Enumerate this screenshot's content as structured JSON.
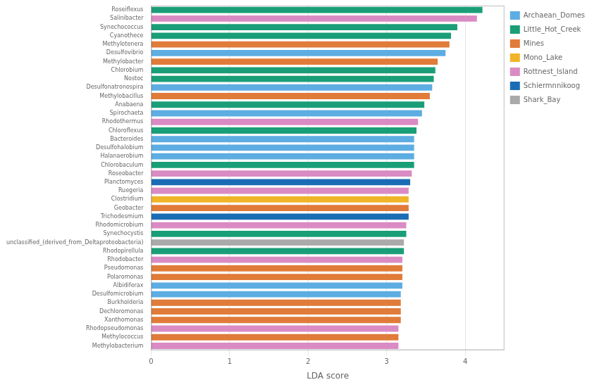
{
  "chart_data": {
    "type": "bar",
    "orientation": "horizontal",
    "xlabel": "LDA score",
    "categories": [
      "Methylobacterium",
      "Methylococcus",
      "Rhodopseudomonas",
      "Xanthomonas",
      "Dechloromonas",
      "Burkholderia",
      "Desulfomicrobium",
      "Albidiferax",
      "Polaromonas",
      "Pseudomonas",
      "Rhodobacter",
      "Rhodopirellula",
      "unclassified_(derived_from_Deltaproteobacteria)",
      "Synechocystis",
      "Rhodomicrobium",
      "Trichodesmium",
      "Geobacter",
      "Clostridium",
      "Ruegeria",
      "Planctomyces",
      "Roseobacter",
      "Chlorobaculum",
      "Halanaerobium",
      "Desulfohalobium",
      "Bacteroides",
      "Chloroflexus",
      "Rhodothermus",
      "Spirochaeta",
      "Anabaena",
      "Methylobacillus",
      "Desulfonatronospira",
      "Nostoc",
      "Chlorobium",
      "Methylobacter",
      "Desulfovibrio",
      "Methylotenera",
      "Cyanothece",
      "Synechococcus",
      "Salinibacter",
      "Roseiflexus"
    ],
    "series": [
      {
        "name": "Archaean_Domes",
        "color": "#5dade2",
        "values": [
          null,
          null,
          null,
          null,
          null,
          null,
          3.18,
          3.2,
          null,
          null,
          null,
          null,
          null,
          null,
          null,
          null,
          null,
          null,
          null,
          null,
          null,
          null,
          3.35,
          3.35,
          3.35,
          null,
          null,
          3.45,
          null,
          null,
          3.58,
          null,
          null,
          null,
          3.75,
          null,
          null,
          null,
          null,
          null
        ]
      },
      {
        "name": "Little_Hot_Creek",
        "color": "#1a9e78",
        "values": [
          null,
          null,
          null,
          null,
          null,
          null,
          null,
          null,
          null,
          null,
          null,
          3.22,
          null,
          3.25,
          null,
          null,
          null,
          null,
          null,
          null,
          null,
          3.35,
          null,
          null,
          null,
          3.38,
          null,
          null,
          3.48,
          null,
          null,
          3.6,
          3.62,
          null,
          null,
          null,
          3.82,
          3.9,
          null,
          4.22
        ]
      },
      {
        "name": "Mines",
        "color": "#e07b39",
        "values": [
          null,
          3.15,
          null,
          3.18,
          3.18,
          3.18,
          null,
          null,
          3.2,
          3.2,
          null,
          null,
          null,
          null,
          null,
          null,
          3.28,
          null,
          null,
          null,
          null,
          null,
          null,
          null,
          null,
          null,
          null,
          null,
          null,
          3.55,
          null,
          null,
          null,
          3.65,
          null,
          3.8,
          null,
          null,
          null,
          null
        ]
      },
      {
        "name": "Mono_Lake",
        "color": "#f0b428",
        "values": [
          null,
          null,
          null,
          null,
          null,
          null,
          null,
          null,
          null,
          null,
          null,
          null,
          null,
          null,
          null,
          null,
          null,
          3.28,
          null,
          null,
          null,
          null,
          null,
          null,
          null,
          null,
          null,
          null,
          null,
          null,
          null,
          null,
          null,
          null,
          null,
          null,
          null,
          null,
          null,
          null
        ]
      },
      {
        "name": "Rottnest_Island",
        "color": "#da8bc3",
        "values": [
          3.15,
          null,
          3.15,
          null,
          null,
          null,
          null,
          null,
          null,
          null,
          3.2,
          null,
          null,
          null,
          3.25,
          null,
          null,
          null,
          3.28,
          null,
          3.32,
          null,
          null,
          null,
          null,
          null,
          3.4,
          null,
          null,
          null,
          null,
          null,
          null,
          null,
          null,
          null,
          null,
          null,
          4.15,
          null
        ]
      },
      {
        "name": "Schiermnnikoog",
        "color": "#1a6db4",
        "values": [
          null,
          null,
          null,
          null,
          null,
          null,
          null,
          null,
          null,
          null,
          null,
          null,
          null,
          null,
          null,
          3.28,
          null,
          null,
          null,
          3.3,
          null,
          null,
          null,
          null,
          null,
          null,
          null,
          null,
          null,
          null,
          null,
          null,
          null,
          null,
          null,
          null,
          null,
          null,
          null,
          null
        ]
      },
      {
        "name": "Shark_Bay",
        "color": "#aaaaaa",
        "values": [
          null,
          null,
          null,
          null,
          null,
          null,
          null,
          null,
          null,
          null,
          null,
          null,
          3.22,
          null,
          null,
          null,
          null,
          null,
          null,
          null,
          null,
          null,
          null,
          null,
          null,
          null,
          null,
          null,
          null,
          null,
          null,
          null,
          null,
          null,
          null,
          null,
          null,
          null,
          null,
          null
        ]
      }
    ],
    "xlim": [
      0,
      4.5
    ],
    "xticks": [
      0,
      1,
      2,
      3,
      4
    ],
    "grid": true,
    "legend": "upper right"
  }
}
